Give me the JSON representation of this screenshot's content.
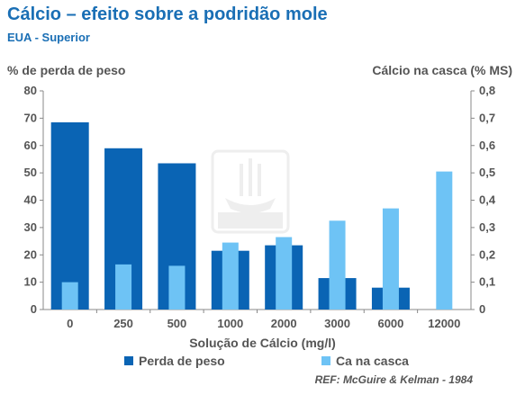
{
  "chart_data": {
    "type": "bar",
    "title": "Cálcio – efeito sobre a podridão mole",
    "subtitle": "EUA - Superior",
    "ylabel": "% de perda de peso",
    "y2label": "Cálcio na casca (% MS)",
    "xlabel": "Solução de Cálcio (mg/l)",
    "categories": [
      "0",
      "250",
      "500",
      "1000",
      "2000",
      "3000",
      "6000",
      "12000"
    ],
    "ylim": [
      0,
      80
    ],
    "y2lim": [
      0,
      0.8
    ],
    "yticks": [
      "0",
      "10",
      "20",
      "30",
      "40",
      "50",
      "60",
      "70",
      "80"
    ],
    "y2ticks": [
      "0",
      "0,1",
      "0,2",
      "0,3",
      "0,4",
      "0,5",
      "0,6",
      "0,7",
      "0,8"
    ],
    "series": [
      {
        "name": "Perda de peso",
        "axis": "left",
        "color": "#0a64b4",
        "values": [
          68.5,
          59,
          53.5,
          21.5,
          23.5,
          11.5,
          8,
          null
        ]
      },
      {
        "name": "Ca na casca",
        "axis": "right",
        "color": "#6ec3f5",
        "values": [
          0.1,
          0.165,
          0.16,
          0.245,
          0.265,
          0.325,
          0.37,
          0.505
        ]
      }
    ],
    "grid": false,
    "legend": "bottom",
    "source": "REF: McGuire & Kelman - 1984"
  }
}
